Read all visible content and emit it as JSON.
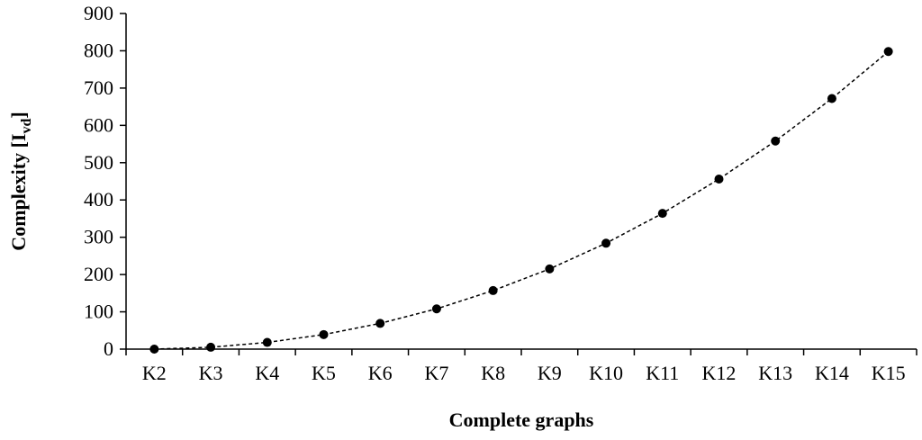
{
  "chart_data": {
    "type": "line",
    "title": "",
    "xlabel": "Complete graphs",
    "ylabel": {
      "main": "Complexity [I",
      "sub": "vd",
      "close": "]"
    },
    "categories": [
      "K2",
      "K3",
      "K4",
      "K5",
      "K6",
      "K7",
      "K8",
      "K9",
      "K10",
      "K11",
      "K12",
      "K13",
      "K14",
      "K15"
    ],
    "series": [
      {
        "values": [
          0,
          5,
          18,
          39,
          69,
          108,
          157,
          215,
          284,
          364,
          456,
          558,
          672,
          798
        ]
      }
    ],
    "ylim": [
      0,
      900
    ],
    "yticks": [
      0,
      100,
      200,
      300,
      400,
      500,
      600,
      700,
      800,
      900
    ],
    "grid": false,
    "legend": "none",
    "line_style": "dashed",
    "color": "#000000"
  }
}
